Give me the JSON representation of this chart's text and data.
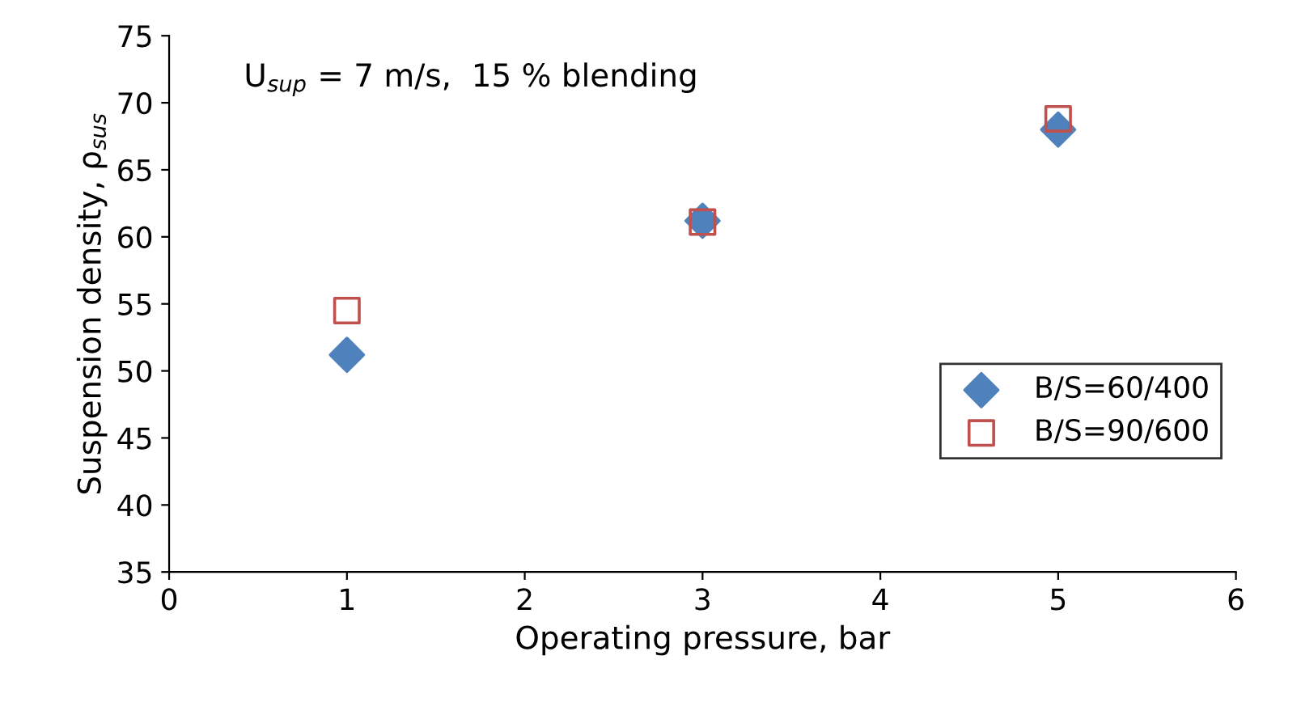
{
  "chart_data": {
    "type": "scatter",
    "annotations": [
      "U$_{sup}$ = 7 m/s,  15 % blending"
    ],
    "xlabel": "Operating pressure, bar",
    "ylabel": "Suspension density, ρ$_{sus}$",
    "x": [
      1,
      3,
      5
    ],
    "series": [
      {
        "name": "B/S=60/400",
        "color": "#4f81bd",
        "marker": "diamond",
        "values": [
          51.2,
          61.2,
          68.0
        ]
      },
      {
        "name": "B/S=90/600",
        "color": "#c0504d",
        "marker": "square",
        "values": [
          54.5,
          61.1,
          68.8
        ]
      }
    ],
    "xlim": [
      0,
      6
    ],
    "xticks": [
      0,
      1,
      2,
      3,
      4,
      5,
      6
    ],
    "ylim": [
      35,
      75
    ],
    "yticks": [
      35,
      40,
      45,
      50,
      55,
      60,
      65,
      70,
      75
    ],
    "grid": false,
    "legend": "right"
  }
}
